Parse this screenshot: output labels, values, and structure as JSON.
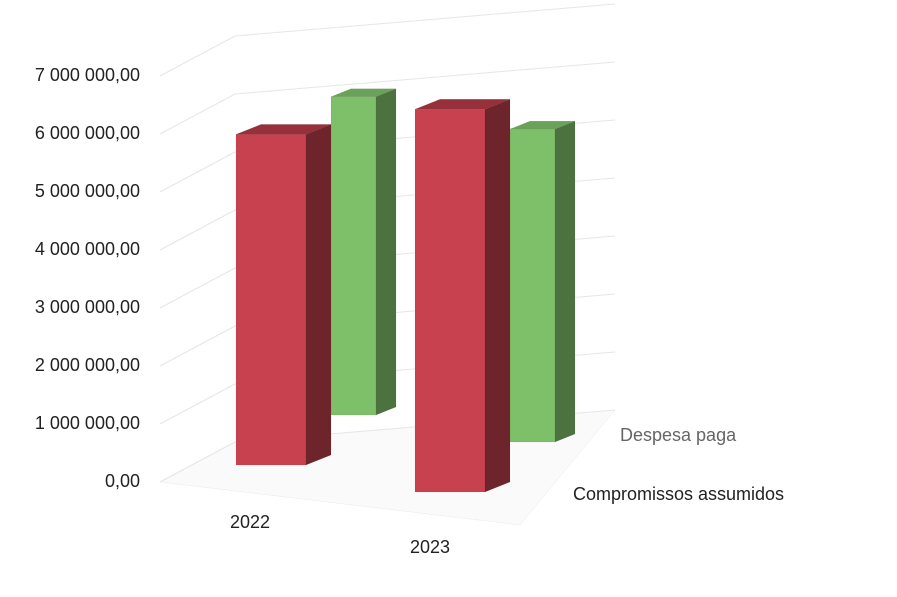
{
  "chart_data": {
    "type": "bar",
    "style": "3d-column",
    "categories": [
      "2022",
      "2023"
    ],
    "series": [
      {
        "name": "Compromissos assumidos",
        "values": [
          5700000,
          6600000
        ],
        "color": "#c8414f"
      },
      {
        "name": "Despesa paga",
        "values": [
          5900000,
          5800000
        ],
        "color": "#7ebf69"
      }
    ],
    "y_ticks": [
      "0,00",
      "1 000 000,00",
      "2 000 000,00",
      "3 000 000,00",
      "4 000 000,00",
      "5 000 000,00",
      "6 000 000,00",
      "7 000 000,00"
    ],
    "ylim": [
      0,
      7000000
    ],
    "grid": true,
    "legend": "series labels on depth axis, right side"
  }
}
